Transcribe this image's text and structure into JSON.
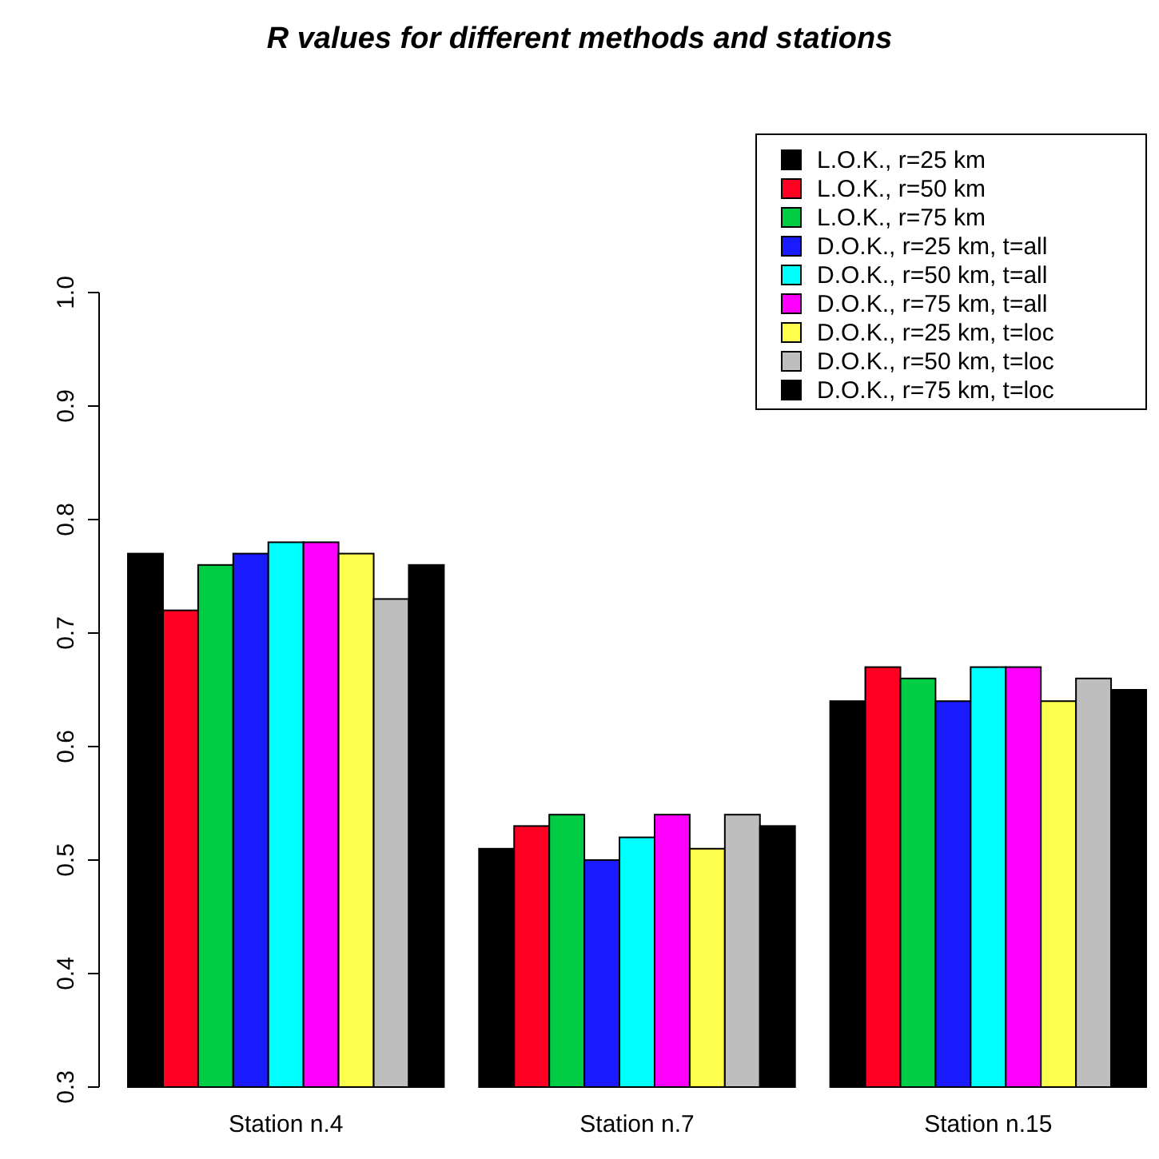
{
  "chart_data": {
    "type": "bar",
    "title": "R values for different methods and stations",
    "categories": [
      "Station n.4",
      "Station n.7",
      "Station n.15"
    ],
    "series": [
      {
        "name": "L.O.K., r=25 km",
        "color": "#000000",
        "values": [
          0.77,
          0.51,
          0.64
        ]
      },
      {
        "name": "L.O.K., r=50 km",
        "color": "#ff0022",
        "values": [
          0.72,
          0.53,
          0.67
        ]
      },
      {
        "name": "L.O.K., r=75 km",
        "color": "#00cc44",
        "values": [
          0.76,
          0.54,
          0.66
        ]
      },
      {
        "name": "D.O.K., r=25 km, t=all",
        "color": "#1a1aff",
        "values": [
          0.77,
          0.5,
          0.64
        ]
      },
      {
        "name": "D.O.K., r=50 km, t=all",
        "color": "#00ffff",
        "values": [
          0.78,
          0.52,
          0.67
        ]
      },
      {
        "name": "D.O.K., r=75 km, t=all",
        "color": "#ff00ff",
        "values": [
          0.78,
          0.54,
          0.67
        ]
      },
      {
        "name": "D.O.K., r=25 km, t=loc",
        "color": "#ffff4d",
        "values": [
          0.77,
          0.51,
          0.64
        ]
      },
      {
        "name": "D.O.K., r=50 km, t=loc",
        "color": "#bebebe",
        "values": [
          0.73,
          0.54,
          0.66
        ]
      },
      {
        "name": "D.O.K., r=75 km, t=loc",
        "color": "#000000",
        "values": [
          0.76,
          0.53,
          0.65
        ]
      }
    ],
    "ylim": [
      0.3,
      1.0
    ],
    "yticks": [
      0.3,
      0.4,
      0.5,
      0.6,
      0.7,
      0.8,
      0.9,
      {
        "value": 1,
        "label": "1.0"
      }
    ],
    "grid": false,
    "legend": "top right"
  }
}
